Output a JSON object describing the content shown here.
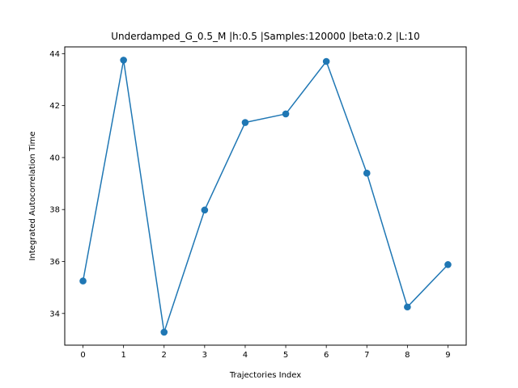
{
  "chart_data": {
    "type": "line",
    "title": "Underdamped_G_0.5_M |h:0.5 |Samples:120000 |beta:0.2 |L:10",
    "xlabel": "Trajectories Index",
    "ylabel": "Integrated Autocorrelation Time",
    "x": [
      0,
      1,
      2,
      3,
      4,
      5,
      6,
      7,
      8,
      9
    ],
    "xticks": [
      "0",
      "1",
      "2",
      "3",
      "4",
      "5",
      "6",
      "7",
      "8",
      "9"
    ],
    "yticks": [
      34,
      36,
      38,
      40,
      42,
      44
    ],
    "xlim": [
      -0.45,
      9.45
    ],
    "ylim": [
      32.78,
      44.26
    ],
    "grid": false,
    "series": [
      {
        "values": [
          35.25,
          43.75,
          33.28,
          37.98,
          41.35,
          41.68,
          43.7,
          39.4,
          34.25,
          35.88
        ],
        "color": "#1f77b4",
        "marker": "circle"
      }
    ]
  }
}
